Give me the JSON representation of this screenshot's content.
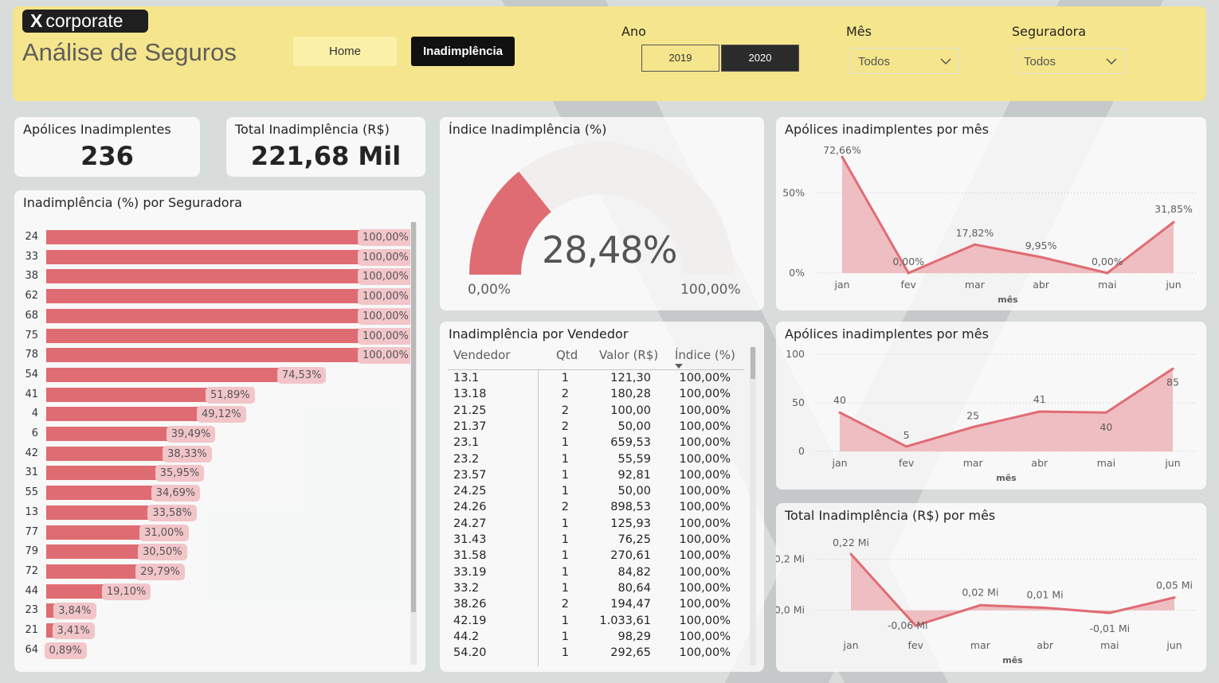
{
  "header": {
    "logo_mark": "X",
    "logo_text": "corporate",
    "app_title": "Análise de Seguros",
    "nav": {
      "home": "Home",
      "inadimplencia": "Inadimplência"
    },
    "ano": {
      "title": "Ano",
      "options": [
        "2019",
        "2020"
      ],
      "selected": "2020"
    },
    "mes": {
      "title": "Mês",
      "value": "Todos"
    },
    "seguradora": {
      "title": "Seguradora",
      "value": "Todos"
    }
  },
  "colors": {
    "accent": "#e06c73",
    "header_bg": "#f5e58c",
    "area_fill": "#ecb4b9"
  },
  "kpis": {
    "apolices": {
      "title": "Apólices Inadimplentes",
      "value": "236"
    },
    "total": {
      "title": "Total Inadimplência (R$)",
      "value": "221,68 Mil"
    }
  },
  "gauge": {
    "title": "Índice Inadimplência (%)",
    "value": "28,48%",
    "value_pct": 28.48,
    "min": "0,00%",
    "max": "100,00%"
  },
  "seguradora_chart": {
    "title": "Inadimplência (%) por Seguradora",
    "chart_data": {
      "type": "bar",
      "orientation": "horizontal",
      "categories": [
        "24",
        "33",
        "38",
        "62",
        "68",
        "75",
        "78",
        "54",
        "41",
        "4",
        "6",
        "42",
        "31",
        "55",
        "13",
        "77",
        "79",
        "72",
        "44",
        "23",
        "21",
        "64"
      ],
      "values": [
        100,
        100,
        100,
        100,
        100,
        100,
        100,
        74.53,
        51.89,
        49.12,
        39.49,
        38.33,
        35.95,
        34.69,
        33.58,
        31.0,
        30.5,
        29.79,
        19.1,
        3.84,
        3.41,
        0.89
      ],
      "labels": [
        "100,00%",
        "100,00%",
        "100,00%",
        "100,00%",
        "100,00%",
        "100,00%",
        "100,00%",
        "74,53%",
        "51,89%",
        "49,12%",
        "39,49%",
        "38,33%",
        "35,95%",
        "34,69%",
        "33,58%",
        "31,00%",
        "30,50%",
        "29,79%",
        "19,10%",
        "3,84%",
        "3,41%",
        "0,89%"
      ],
      "xlim": [
        0,
        100
      ]
    }
  },
  "vendedor_table": {
    "title": "Inadimplência por Vendedor",
    "columns": [
      "Vendedor",
      "Qtd",
      "Valor (R$)",
      "Índice (%)"
    ],
    "rows": [
      [
        "13.1",
        "1",
        "121,30",
        "100,00%"
      ],
      [
        "13.18",
        "2",
        "180,28",
        "100,00%"
      ],
      [
        "21.25",
        "2",
        "100,00",
        "100,00%"
      ],
      [
        "21.37",
        "2",
        "50,00",
        "100,00%"
      ],
      [
        "23.1",
        "1",
        "659,53",
        "100,00%"
      ],
      [
        "23.2",
        "1",
        "55,59",
        "100,00%"
      ],
      [
        "23.57",
        "1",
        "92,81",
        "100,00%"
      ],
      [
        "24.25",
        "1",
        "50,00",
        "100,00%"
      ],
      [
        "24.26",
        "2",
        "898,53",
        "100,00%"
      ],
      [
        "24.27",
        "1",
        "125,93",
        "100,00%"
      ],
      [
        "31.43",
        "1",
        "76,25",
        "100,00%"
      ],
      [
        "31.58",
        "1",
        "270,61",
        "100,00%"
      ],
      [
        "33.19",
        "1",
        "84,82",
        "100,00%"
      ],
      [
        "33.2",
        "1",
        "80,64",
        "100,00%"
      ],
      [
        "38.26",
        "2",
        "194,47",
        "100,00%"
      ],
      [
        "42.19",
        "1",
        "1.033,61",
        "100,00%"
      ],
      [
        "44.2",
        "1",
        "98,29",
        "100,00%"
      ],
      [
        "54.20",
        "1",
        "292,65",
        "100,00%"
      ]
    ]
  },
  "chart_pct_mes": {
    "title": "Apólices inadimplentes por mês",
    "chart_data": {
      "type": "area",
      "categories": [
        "jan",
        "fev",
        "mar",
        "abr",
        "mai",
        "jun"
      ],
      "values": [
        72.66,
        0.0,
        17.82,
        9.95,
        0.0,
        31.85
      ],
      "labels": [
        "72,66%",
        "0,00%",
        "17,82%",
        "9,95%",
        "0,00%",
        "31,85%"
      ],
      "xlabel": "mês",
      "yticks": [
        "0%",
        "50%"
      ],
      "ylim": [
        0,
        72.66
      ]
    }
  },
  "chart_qtd_mes": {
    "title": "Apólices inadimplentes por mês",
    "chart_data": {
      "type": "area",
      "categories": [
        "jan",
        "fev",
        "mar",
        "abr",
        "mai",
        "jun"
      ],
      "values": [
        40,
        5,
        25,
        41,
        40,
        85
      ],
      "labels": [
        "40",
        "5",
        "25",
        "41",
        "40",
        "85"
      ],
      "xlabel": "mês",
      "yticks": [
        "0",
        "50",
        "100"
      ],
      "ylim": [
        0,
        100
      ]
    }
  },
  "chart_total_mes": {
    "title": "Total Inadimplência (R$) por mês",
    "chart_data": {
      "type": "area",
      "categories": [
        "jan",
        "fev",
        "mar",
        "abr",
        "mai",
        "jun"
      ],
      "values": [
        0.22,
        -0.06,
        0.02,
        0.01,
        -0.01,
        0.05
      ],
      "labels": [
        "0,22 Mi",
        "-0,06 Mi",
        "0,02 Mi",
        "0,01 Mi",
        "-0,01 Mi",
        "0,05 Mi"
      ],
      "xlabel": "mês",
      "yticks": [
        "0,0 Mi",
        "0,2 Mi"
      ],
      "ylim": [
        -0.06,
        0.22
      ]
    }
  }
}
